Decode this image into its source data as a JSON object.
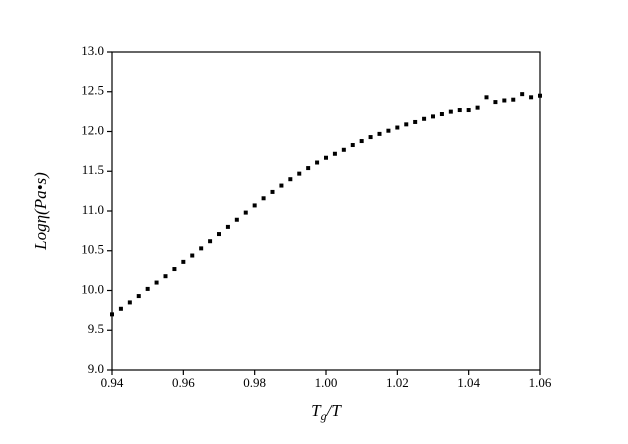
{
  "chart_data": {
    "type": "scatter",
    "x_label": [
      "T",
      "g",
      "/T"
    ],
    "y_label": "Logη(Pa•s)",
    "color": "#000000",
    "grid": false,
    "x": [
      0.94,
      0.9425,
      0.945,
      0.9475,
      0.95,
      0.9525,
      0.955,
      0.9575,
      0.96,
      0.9625,
      0.965,
      0.9675,
      0.97,
      0.9725,
      0.975,
      0.9775,
      0.98,
      0.9825,
      0.985,
      0.9875,
      0.99,
      0.9925,
      0.995,
      0.9975,
      1.0,
      1.0025,
      1.005,
      1.0075,
      1.01,
      1.0125,
      1.015,
      1.0175,
      1.02,
      1.0225,
      1.025,
      1.0275,
      1.03,
      1.0325,
      1.035,
      1.0375,
      1.04,
      1.0425,
      1.045,
      1.0475,
      1.05,
      1.0525,
      1.055,
      1.0575,
      1.06
    ],
    "values": [
      9.7,
      9.77,
      9.85,
      9.93,
      10.02,
      10.1,
      10.18,
      10.27,
      10.36,
      10.44,
      10.53,
      10.62,
      10.71,
      10.8,
      10.89,
      10.98,
      11.07,
      11.16,
      11.24,
      11.32,
      11.4,
      11.47,
      11.54,
      11.61,
      11.67,
      11.72,
      11.77,
      11.83,
      11.88,
      11.93,
      11.97,
      12.01,
      12.05,
      12.09,
      12.12,
      12.16,
      12.19,
      12.22,
      12.25,
      12.27,
      12.27,
      12.3,
      12.43,
      12.37,
      12.39,
      12.4,
      12.47,
      12.43,
      12.45
    ],
    "xlim": [
      0.94,
      1.06
    ],
    "xticks": [
      0.94,
      0.96,
      0.98,
      {
        "value": 1,
        "label": "1.00"
      },
      1.02,
      1.04,
      1.06
    ],
    "ylim": [
      9,
      13
    ],
    "yticks": [
      {
        "value": 9,
        "label": "9.0"
      },
      9.5,
      {
        "value": 10,
        "label": "10.0"
      },
      10.5,
      {
        "value": 11,
        "label": "11.0"
      },
      11.5,
      {
        "value": 12,
        "label": "12.0"
      },
      12.5,
      {
        "value": 13,
        "label": "13.0"
      }
    ]
  }
}
